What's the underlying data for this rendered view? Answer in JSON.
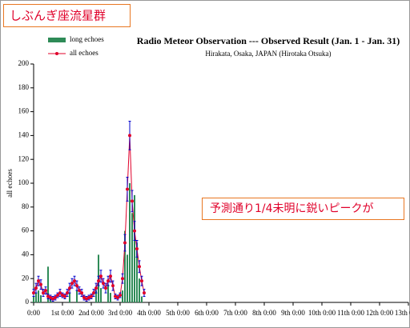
{
  "header": {
    "title": "しぶんぎ座流星群"
  },
  "chart_data": {
    "type": "line",
    "title": "Radio Meteor Observation --- Observed Result (Jan. 1 - Jan. 31)",
    "subtitle": "Hirakata, Osaka, JAPAN (Hirotaka Otsuka)",
    "y_label": "all echoes",
    "annotation": "予測通り1/4未明に鋭いピークが",
    "x": [
      0,
      2,
      4,
      6,
      8,
      10,
      12,
      14,
      16,
      18,
      20,
      22,
      24,
      26,
      28,
      30,
      32,
      34,
      36,
      38,
      40,
      42,
      44,
      46,
      48,
      50,
      52,
      54,
      56,
      58,
      60,
      62,
      64,
      66,
      68,
      70,
      72,
      74,
      76,
      78,
      80,
      82,
      84,
      86,
      88,
      90,
      92
    ],
    "series": [
      {
        "name": "long echoes",
        "type": "bar",
        "color": "#2e8b57",
        "values": [
          5,
          8,
          10,
          6,
          0,
          0,
          30,
          5,
          0,
          0,
          0,
          0,
          0,
          0,
          0,
          8,
          0,
          0,
          10,
          0,
          0,
          0,
          0,
          0,
          0,
          0,
          10,
          40,
          12,
          0,
          0,
          15,
          8,
          0,
          0,
          0,
          0,
          10,
          60,
          40,
          100,
          75,
          90,
          50,
          20,
          5,
          0
        ]
      },
      {
        "name": "all echoes",
        "type": "line",
        "color": "#e0002a",
        "error_color": "#0000cc",
        "values": [
          8,
          12,
          18,
          15,
          8,
          10,
          5,
          4,
          3,
          4,
          6,
          8,
          6,
          5,
          8,
          12,
          16,
          18,
          14,
          10,
          8,
          4,
          3,
          4,
          5,
          8,
          12,
          18,
          22,
          16,
          12,
          18,
          22,
          14,
          5,
          4,
          6,
          20,
          50,
          95,
          140,
          85,
          60,
          45,
          30,
          18,
          8
        ],
        "errors": [
          3,
          4,
          4,
          4,
          3,
          3,
          2,
          2,
          2,
          2,
          2,
          3,
          2,
          2,
          3,
          4,
          4,
          4,
          4,
          3,
          3,
          2,
          2,
          2,
          2,
          3,
          4,
          4,
          5,
          4,
          4,
          4,
          5,
          4,
          2,
          2,
          2,
          4,
          7,
          10,
          12,
          9,
          8,
          7,
          5,
          4,
          3
        ]
      }
    ],
    "xlim": [
      0,
      312
    ],
    "xticks": [
      {
        "value": 0,
        "label": "0:00"
      },
      {
        "value": 24,
        "label": "1st 0:00"
      },
      {
        "value": 48,
        "label": "2nd 0:00"
      },
      {
        "value": 72,
        "label": "3rd 0:00"
      },
      {
        "value": 96,
        "label": "4th 0:00"
      },
      {
        "value": 120,
        "label": "5th 0:00"
      },
      {
        "value": 144,
        "label": "6th 0:00"
      },
      {
        "value": 168,
        "label": "7th 0:00"
      },
      {
        "value": 192,
        "label": "8th 0:00"
      },
      {
        "value": 216,
        "label": "9th 0:00"
      },
      {
        "value": 240,
        "label": "10th 0:00"
      },
      {
        "value": 264,
        "label": "11th 0:00"
      },
      {
        "value": 288,
        "label": "12th 0:00"
      },
      {
        "value": 312,
        "label": "13th 0:00"
      }
    ],
    "ylim": [
      0,
      200
    ],
    "yticks": [
      0,
      20,
      40,
      60,
      80,
      100,
      120,
      140,
      160,
      180,
      200
    ],
    "legend": "top-left"
  }
}
